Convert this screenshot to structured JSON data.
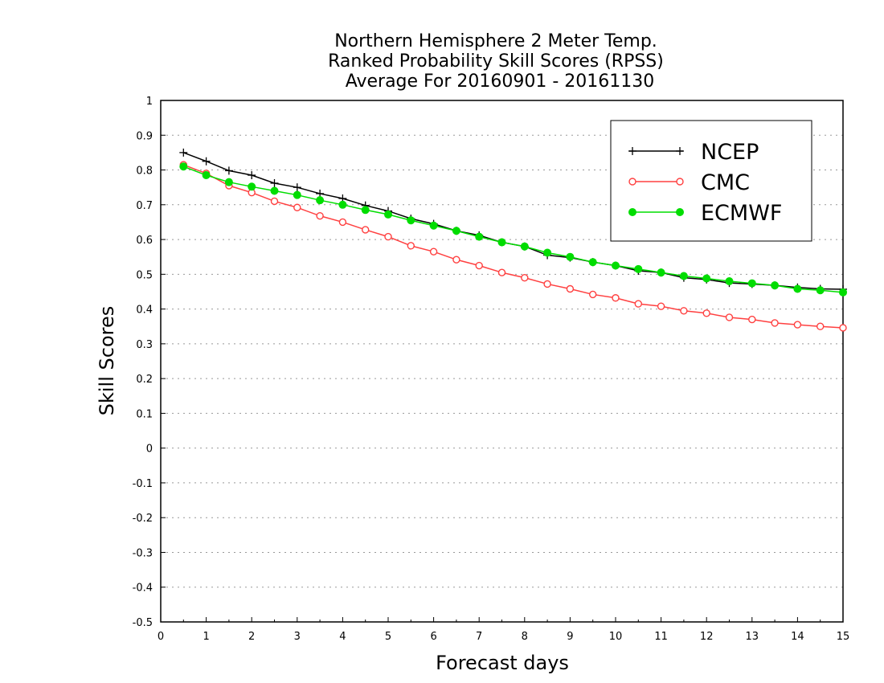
{
  "chart_data": {
    "type": "line",
    "title": [
      "Northern Hemisphere 2 Meter Temp.",
      "Ranked Probability Skill Scores (RPSS)",
      "Average For 20160901 - 20161130"
    ],
    "xlabel": "Forecast days",
    "ylabel": "Skill Scores",
    "xlim": [
      0,
      15
    ],
    "ylim": [
      -0.5,
      1
    ],
    "xticks": [
      "0",
      "1",
      "2",
      "3",
      "4",
      "5",
      "6",
      "7",
      "8",
      "9",
      "10",
      "11",
      "12",
      "13",
      "14",
      "15"
    ],
    "yticks": [
      "1",
      "0.9",
      "0.8",
      "0.7",
      "0.6",
      "0.5",
      "0.4",
      "0.3",
      "0.2",
      "0.1",
      "0",
      "-0.1",
      "-0.2",
      "-0.3",
      "-0.4",
      "-0.5"
    ],
    "grid": true,
    "legend_position": "top-right",
    "x": [
      0.5,
      1,
      1.5,
      2,
      2.5,
      3,
      3.5,
      4,
      4.5,
      5,
      5.5,
      6,
      6.5,
      7,
      7.5,
      8,
      8.5,
      9,
      9.5,
      10,
      10.5,
      11,
      11.5,
      12,
      12.5,
      13,
      13.5,
      14,
      14.5,
      15
    ],
    "series": [
      {
        "name": "NCEP",
        "color": "#000000",
        "marker": "plus",
        "values": [
          0.85,
          0.825,
          0.798,
          0.785,
          0.762,
          0.75,
          0.732,
          0.718,
          0.698,
          0.682,
          0.66,
          0.645,
          0.625,
          0.612,
          0.592,
          0.58,
          0.555,
          0.548,
          0.535,
          0.525,
          0.51,
          0.505,
          0.49,
          0.485,
          0.475,
          0.472,
          0.468,
          0.462,
          0.458,
          0.457
        ]
      },
      {
        "name": "CMC",
        "color": "#ff4040",
        "marker": "open-circle",
        "values": [
          0.815,
          0.79,
          0.755,
          0.735,
          0.71,
          0.692,
          0.668,
          0.65,
          0.628,
          0.608,
          0.582,
          0.565,
          0.542,
          0.525,
          0.505,
          0.49,
          0.472,
          0.458,
          0.442,
          0.432,
          0.415,
          0.408,
          0.395,
          0.388,
          0.376,
          0.37,
          0.36,
          0.355,
          0.35,
          0.346
        ]
      },
      {
        "name": "ECMWF",
        "color": "#00dd00",
        "marker": "filled-circle",
        "values": [
          0.81,
          0.785,
          0.765,
          0.752,
          0.74,
          0.728,
          0.713,
          0.7,
          0.685,
          0.672,
          0.655,
          0.64,
          0.625,
          0.608,
          0.592,
          0.58,
          0.562,
          0.55,
          0.535,
          0.525,
          0.515,
          0.505,
          0.495,
          0.488,
          0.48,
          0.474,
          0.468,
          0.458,
          0.454,
          0.448
        ]
      }
    ]
  }
}
